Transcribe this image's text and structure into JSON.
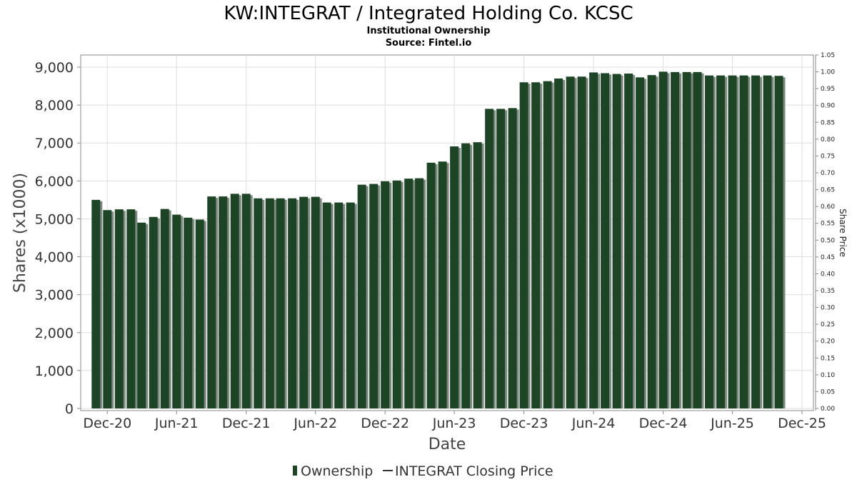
{
  "chart_data": {
    "type": "bar",
    "title": "KW:INTEGRAT / Integrated Holding Co. KCSC",
    "subtitle": "Institutional Ownership",
    "source": "Source: Fintel.io",
    "xlabel": "Date",
    "ylabel": "Shares (x1000)",
    "y2label": "Share Price",
    "ylim": [
      0,
      9200
    ],
    "y2lim": [
      0,
      1.05
    ],
    "yticks": [
      0,
      1000,
      2000,
      3000,
      4000,
      5000,
      6000,
      7000,
      8000,
      9000
    ],
    "ytick_labels": [
      "0",
      "1,000",
      "2,000",
      "3,000",
      "4,000",
      "5,000",
      "6,000",
      "7,000",
      "8,000",
      "9,000"
    ],
    "y2ticks": [
      0.0,
      0.05,
      0.1,
      0.15,
      0.2,
      0.25,
      0.3,
      0.35,
      0.4,
      0.45,
      0.5,
      0.55,
      0.6,
      0.65,
      0.7,
      0.75,
      0.8,
      0.85,
      0.9,
      0.95,
      1.0,
      1.05
    ],
    "y2tick_labels": [
      "0.00",
      "0.05",
      "0.10",
      "0.15",
      "0.20",
      "0.25",
      "0.30",
      "0.35",
      "0.40",
      "0.45",
      "0.50",
      "0.55",
      "0.60",
      "0.65",
      "0.70",
      "0.75",
      "0.80",
      "0.85",
      "0.90",
      "0.95",
      "1.00",
      "1.05"
    ],
    "x_range": [
      "2020-09-22",
      "2025-12-31"
    ],
    "xticks": [
      "2020-12-01",
      "2021-06-01",
      "2021-12-01",
      "2022-06-01",
      "2022-12-01",
      "2023-06-01",
      "2023-12-01",
      "2024-06-01",
      "2024-12-01",
      "2025-06-01",
      "2025-12-01"
    ],
    "xtick_labels": [
      "Dec-20",
      "Jun-21",
      "Dec-21",
      "Jun-22",
      "Dec-22",
      "Jun-23",
      "Dec-23",
      "Jun-24",
      "Dec-24",
      "Jun-25",
      "Dec-25"
    ],
    "grid": true,
    "legend": {
      "position": "bottom",
      "entries": [
        "Ownership",
        "INTEGRAT Closing Price"
      ]
    },
    "colors": {
      "bar": "#1c4425",
      "bar_shadow": "#7e8a80",
      "grid": "#dddddd",
      "frame": "#888888"
    },
    "series": [
      {
        "name": "Ownership",
        "dates": [
          "2020-11-01",
          "2020-12-01",
          "2021-01-01",
          "2021-02-01",
          "2021-03-01",
          "2021-04-01",
          "2021-05-01",
          "2021-06-01",
          "2021-07-01",
          "2021-08-01",
          "2021-09-01",
          "2021-10-01",
          "2021-11-01",
          "2021-12-01",
          "2022-01-01",
          "2022-02-01",
          "2022-03-01",
          "2022-04-01",
          "2022-05-01",
          "2022-06-01",
          "2022-07-01",
          "2022-08-01",
          "2022-09-01",
          "2022-10-01",
          "2022-11-01",
          "2022-12-01",
          "2023-01-01",
          "2023-02-01",
          "2023-03-01",
          "2023-04-01",
          "2023-05-01",
          "2023-06-01",
          "2023-07-01",
          "2023-08-01",
          "2023-09-01",
          "2023-10-01",
          "2023-11-01",
          "2023-12-01",
          "2024-01-01",
          "2024-02-01",
          "2024-03-01",
          "2024-04-01",
          "2024-05-01",
          "2024-06-01",
          "2024-07-01",
          "2024-08-01",
          "2024-09-01",
          "2024-10-01",
          "2024-11-01",
          "2024-12-01",
          "2025-01-01",
          "2025-02-01",
          "2025-03-01",
          "2025-04-01",
          "2025-05-01",
          "2025-06-01",
          "2025-07-01",
          "2025-08-01",
          "2025-09-01",
          "2025-10-01"
        ],
        "values": [
          5500,
          5230,
          5250,
          5250,
          4900,
          5050,
          5260,
          5110,
          5030,
          4980,
          5590,
          5590,
          5660,
          5660,
          5540,
          5540,
          5540,
          5540,
          5580,
          5580,
          5430,
          5430,
          5430,
          5900,
          5920,
          5990,
          6010,
          6060,
          6070,
          6480,
          6510,
          6910,
          6990,
          7020,
          7900,
          7900,
          7920,
          8600,
          8600,
          8630,
          8700,
          8750,
          8750,
          8860,
          8840,
          8820,
          8830,
          8730,
          8790,
          8880,
          8870,
          8870,
          8870,
          8780,
          8780,
          8780,
          8780,
          8780,
          8780,
          8770
        ]
      }
    ]
  }
}
